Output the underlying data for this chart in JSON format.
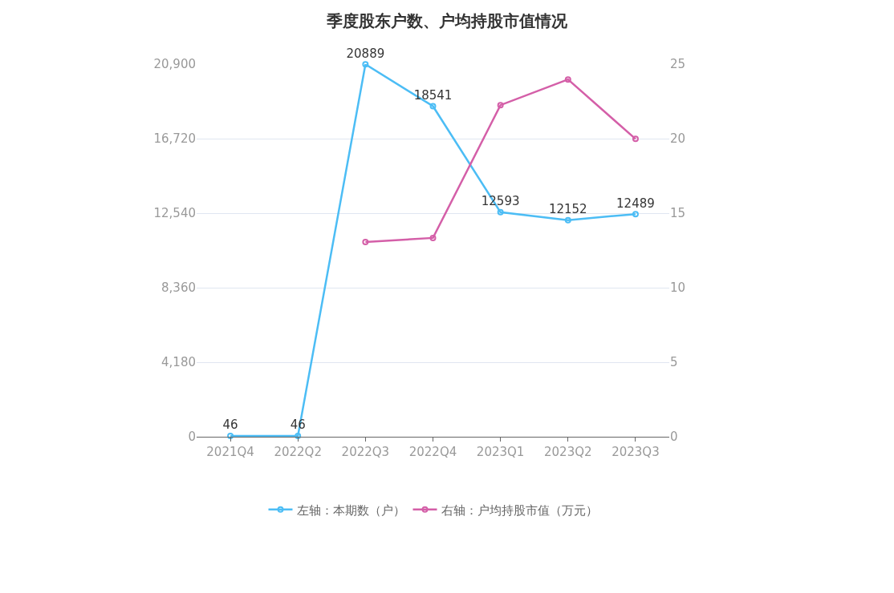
{
  "chart_data": {
    "type": "line",
    "title": "季度股东户数、户均持股市值情况",
    "categories": [
      "2021Q4",
      "2022Q2",
      "2022Q3",
      "2022Q4",
      "2023Q1",
      "2023Q2",
      "2023Q3"
    ],
    "series": [
      {
        "name": "左轴：本期数（户）",
        "color": "#4cbdf5",
        "values": [
          46,
          46,
          20889,
          18541,
          12593,
          12152,
          12489
        ],
        "value_labels": [
          "46",
          "46",
          "20889",
          "18541",
          "12593",
          "12152",
          "12489"
        ]
      },
      {
        "name": "右轴：户均持股市值（万元）",
        "color": "#d45fa8",
        "axis": "y2",
        "values": [
          null,
          null,
          13.07,
          13.34,
          22.25,
          23.97,
          19.98
        ]
      }
    ],
    "ylim": [
      0,
      20900
    ],
    "yticks": [
      0,
      {
        "value": 4180,
        "label": "4,180"
      },
      {
        "value": 8360,
        "label": "8,360"
      },
      {
        "value": 12540,
        "label": "12,540"
      },
      {
        "value": 16720,
        "label": "16,720"
      },
      {
        "value": 20900,
        "label": "20,900"
      }
    ],
    "y2lim": [
      0,
      25
    ],
    "y2ticks": [
      0,
      5,
      10,
      15,
      20,
      25
    ],
    "grid": "y",
    "legend": "bottom",
    "marker": "circle",
    "line_style": "solid"
  }
}
